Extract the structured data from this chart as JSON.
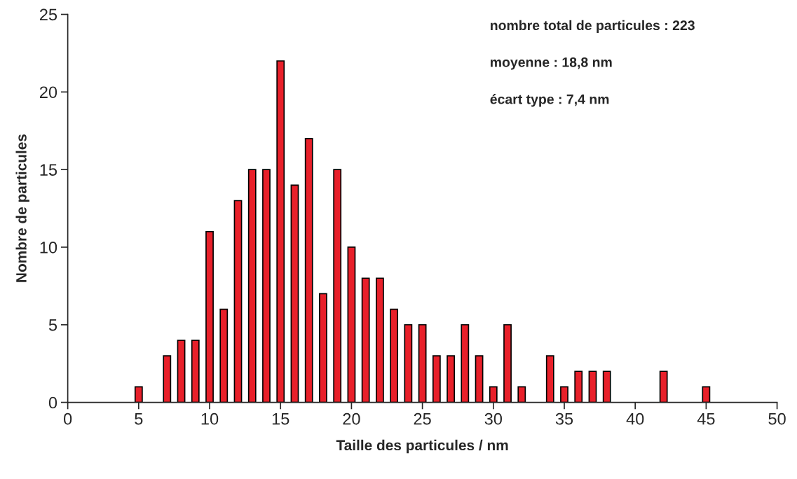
{
  "chart_data": {
    "type": "bar",
    "xlabel": "Taille des particules / nm",
    "ylabel": "Nombre de particules",
    "x": [
      5,
      7,
      8,
      9,
      10,
      11,
      12,
      13,
      14,
      15,
      16,
      17,
      18,
      19,
      20,
      21,
      22,
      23,
      24,
      25,
      26,
      27,
      28,
      29,
      30,
      31,
      32,
      34,
      35,
      36,
      37,
      38,
      42,
      45
    ],
    "values": [
      1,
      3,
      4,
      4,
      11,
      6,
      13,
      15,
      15,
      22,
      14,
      17,
      7,
      15,
      10,
      8,
      8,
      6,
      5,
      5,
      3,
      3,
      5,
      3,
      1,
      5,
      1,
      3,
      1,
      2,
      2,
      2,
      2,
      1
    ],
    "color": "#e8202a",
    "xlim": [
      0,
      50
    ],
    "xticks": [
      0,
      5,
      10,
      15,
      20,
      25,
      30,
      35,
      40,
      45,
      50
    ],
    "ylim": [
      0,
      25
    ],
    "yticks": [
      0,
      5,
      10,
      15,
      20,
      25
    ],
    "grid": false,
    "annotations": [
      "nombre total de particules : 223",
      "moyenne : 18,8 nm",
      "écart type : 7,4 nm"
    ]
  }
}
